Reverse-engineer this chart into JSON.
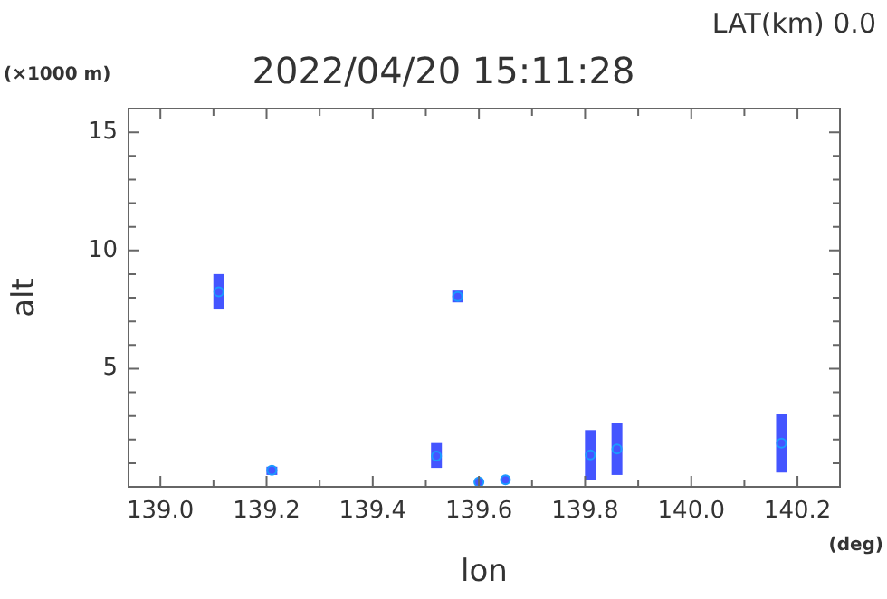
{
  "chart_data": {
    "type": "scatter",
    "title": "2022/04/20 15:11:28",
    "xlabel": "lon",
    "ylabel": "alt",
    "annotations": [
      "LAT(km) 0.0",
      "(×1000 m)",
      "(deg)"
    ],
    "x": [
      139.11,
      139.21,
      139.52,
      139.56,
      139.6,
      139.65,
      139.81,
      139.86,
      140.17
    ],
    "series": [
      {
        "color": "#4455ff",
        "values": [
          8.25,
          0.7,
          1.3,
          8.05,
          0.2,
          0.3,
          1.35,
          1.6,
          1.85
        ],
        "errors": [
          [
            7.5,
            9.0
          ],
          [
            0.5,
            0.85
          ],
          [
            0.8,
            1.85
          ],
          [
            7.8,
            8.3
          ],
          null,
          null,
          [
            0.3,
            2.4
          ],
          [
            0.5,
            2.7
          ],
          [
            0.6,
            3.1
          ]
        ]
      }
    ],
    "xlim": [
      138.94,
      140.28
    ],
    "xticks": [
      {
        "value": 139,
        "label": "139.0"
      },
      {
        "value": 139.1,
        "label": null
      },
      139.2,
      {
        "value": 139.3,
        "label": null
      },
      139.4,
      {
        "value": 139.5,
        "label": null
      },
      139.6,
      {
        "value": 139.7,
        "label": null
      },
      139.8,
      {
        "value": 139.9,
        "label": null
      },
      {
        "value": 140,
        "label": "140.0"
      },
      {
        "value": 140.1,
        "label": null
      },
      140.2
    ],
    "ylim": [
      0,
      16
    ],
    "yticks": [
      {
        "value": 1,
        "label": null
      },
      {
        "value": 2,
        "label": null
      },
      {
        "value": 3,
        "label": null
      },
      {
        "value": 4,
        "label": null
      },
      5,
      {
        "value": 6,
        "label": null
      },
      {
        "value": 7,
        "label": null
      },
      {
        "value": 8,
        "label": null
      },
      {
        "value": 9,
        "label": null
      },
      10,
      {
        "value": 11,
        "label": null
      },
      {
        "value": 12,
        "label": null
      },
      {
        "value": 13,
        "label": null
      },
      {
        "value": 14,
        "label": null
      },
      15
    ],
    "grid": false,
    "legend": false,
    "marker": "circle"
  }
}
